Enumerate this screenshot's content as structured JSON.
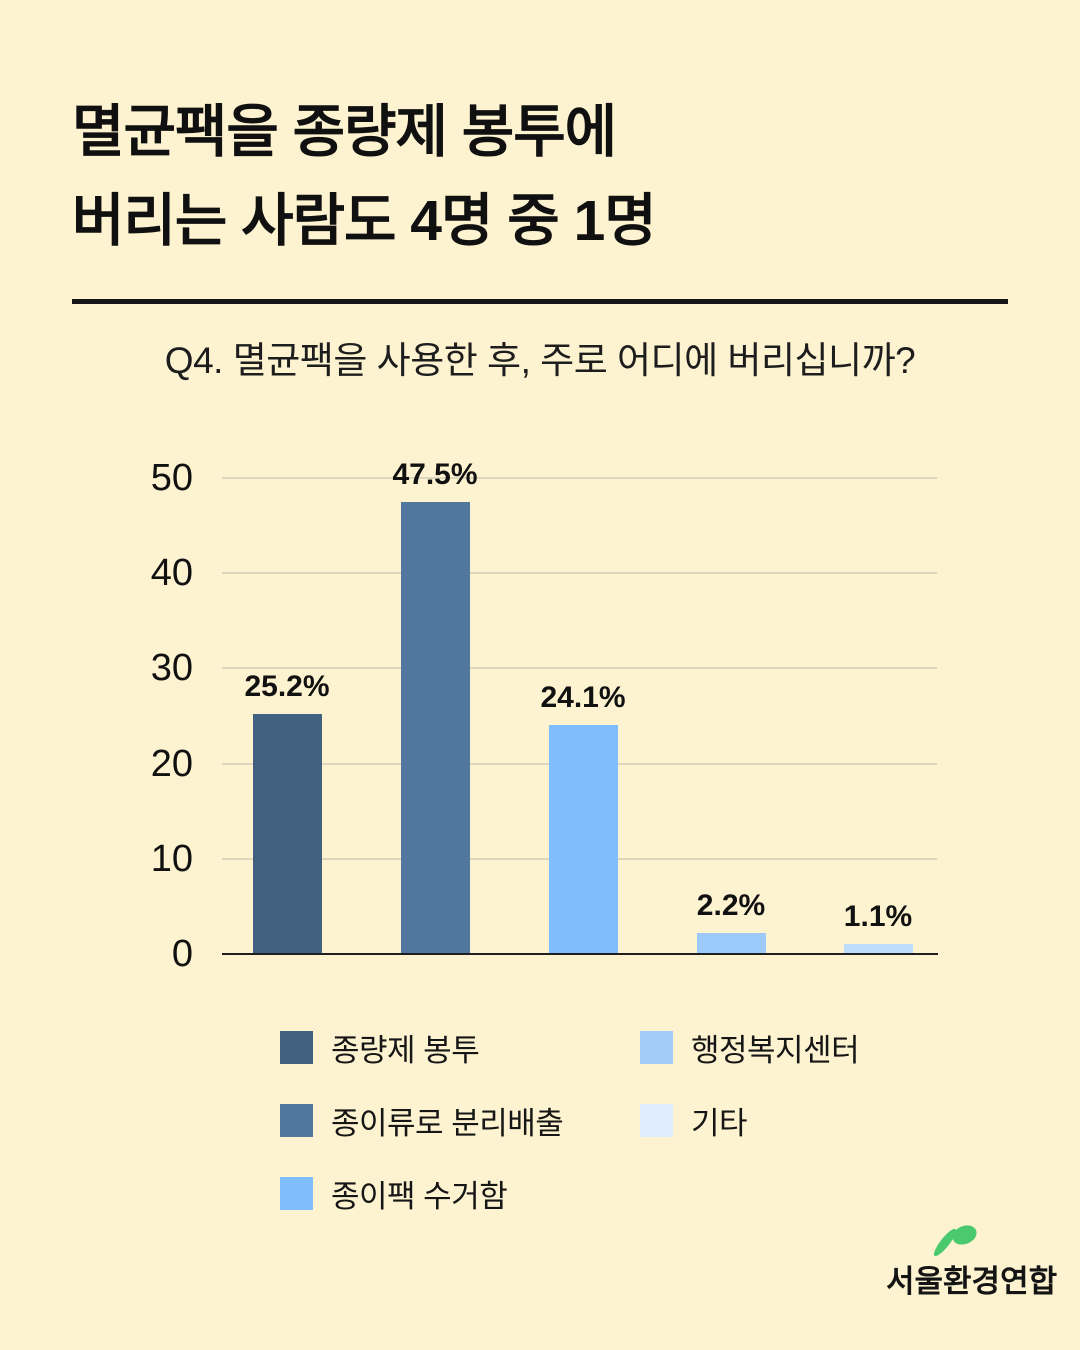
{
  "page": {
    "background": "#fdf3d0"
  },
  "header": {
    "title_line1": "멸균팩을 종량제 봉투에",
    "title_line2": "버리는 사람도 4명 중 1명"
  },
  "question": "Q4. 멸균팩을 사용한 후, 주로 어디에 버리십니까?",
  "chart_data": {
    "type": "bar",
    "title": "Q4. 멸균팩을 사용한 후, 주로 어디에 버리십니까?",
    "categories": [
      "종량제 봉투",
      "종이류로 분리배출",
      "종이팩 수거함",
      "행정복지센터",
      "기타"
    ],
    "values": [
      25.2,
      47.5,
      24.1,
      2.2,
      1.1
    ],
    "value_labels": [
      "25.2%",
      "47.5%",
      "24.1%",
      "2.2%",
      "1.1%"
    ],
    "bar_colors": [
      "#42607f",
      "#51779e",
      "#80bdfc",
      "#9ccafb",
      "#bedcfb"
    ],
    "y_ticks": [
      0,
      10,
      20,
      30,
      40,
      50
    ],
    "ylim": [
      0,
      50
    ],
    "xlabel": "",
    "ylabel": "",
    "grid": true,
    "gridline_color": "#ded7bf",
    "axis_color": "#1f1f1f",
    "legend_position": "bottom"
  },
  "legend": {
    "columns": [
      [
        {
          "label": "종량제 봉투",
          "color": "#42607f"
        },
        {
          "label": "종이류로 분리배출",
          "color": "#51779e"
        },
        {
          "label": "종이팩 수거함",
          "color": "#80bdfc"
        }
      ],
      [
        {
          "label": "행정복지센터",
          "color": "#a3ccf8"
        },
        {
          "label": "기타",
          "color": "#dfecfd"
        }
      ]
    ]
  },
  "footer": {
    "logo_text": "서울환경연합",
    "logo_green": "#4ac96e"
  }
}
